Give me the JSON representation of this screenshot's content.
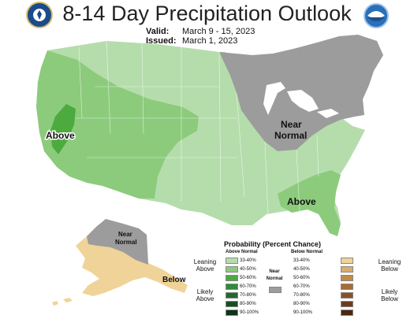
{
  "title": "8-14 Day Precipitation Outlook",
  "valid_label": "Valid:",
  "valid_value": "March 9 - 15, 2023",
  "issued_label": "Issued:",
  "issued_value": "March 1, 2023",
  "map_labels": {
    "above_west": "Above",
    "near_normal_ne_1": "Near",
    "near_normal_ne_2": "Normal",
    "above_se": "Above",
    "near_normal_ak_1": "Near",
    "near_normal_ak_2": "Normal",
    "below_ak": "Below"
  },
  "colors": {
    "above_33_40": "#b5ddac",
    "above_40_50": "#8ccb7c",
    "above_50_60": "#4caa3f",
    "above_60_70": "#2f8a3a",
    "above_70_80": "#1f6a2c",
    "above_80_90": "#154f22",
    "above_90_100": "#0c3416",
    "near_normal": "#9c9c9c",
    "below_33_40": "#f0d398",
    "below_40_50": "#d9ad6a",
    "below_50_60": "#c48a48",
    "below_60_70": "#a86b34",
    "below_70_80": "#8a5126",
    "below_80_90": "#6d3b1b",
    "below_90_100": "#4d2711"
  },
  "legend": {
    "title": "Probability (Percent Chance)",
    "above_header": "Above Normal",
    "below_header": "Below Normal",
    "leaning_above": [
      "Leaning",
      "Above"
    ],
    "likely_above": [
      "Likely",
      "Above"
    ],
    "near_normal": [
      "Near",
      "Normal"
    ],
    "leaning_below": [
      "Leaning",
      "Below"
    ],
    "likely_below": [
      "Likely",
      "Below"
    ],
    "above_ranges": [
      "33-40%",
      "40-50%",
      "50-60%",
      "60-70%",
      "70-80%",
      "80-90%",
      "90-100%"
    ],
    "below_ranges": [
      "33-40%",
      "40-50%",
      "50-60%",
      "60-70%",
      "70-80%",
      "80-90%",
      "90-100%"
    ]
  },
  "icons": {
    "agency_logo_left": "department-of-commerce-seal",
    "agency_logo_right": "noaa-logo"
  }
}
